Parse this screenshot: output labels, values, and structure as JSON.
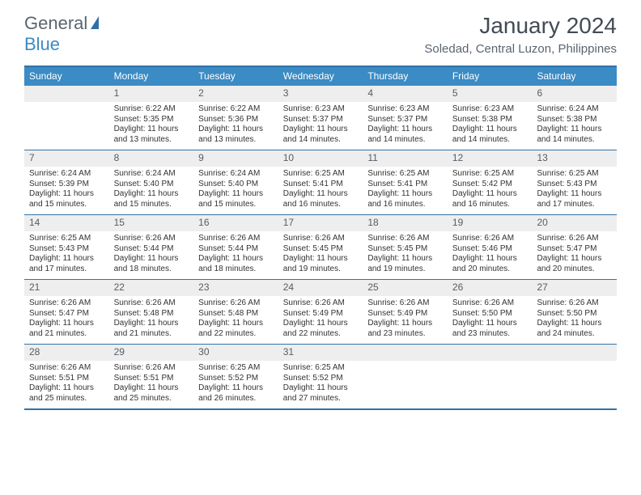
{
  "brand": {
    "part1": "General",
    "part2": "Blue"
  },
  "title": "January 2024",
  "location": "Soledad, Central Luzon, Philippines",
  "colors": {
    "header_bg": "#3b8bc4",
    "border": "#2f73a9",
    "daynum_bg": "#eeeeee",
    "text": "#333333",
    "muted": "#5a6570"
  },
  "days_of_week": [
    "Sunday",
    "Monday",
    "Tuesday",
    "Wednesday",
    "Thursday",
    "Friday",
    "Saturday"
  ],
  "weeks": [
    [
      {
        "n": "",
        "sr": "",
        "ss": "",
        "dl": ""
      },
      {
        "n": "1",
        "sr": "Sunrise: 6:22 AM",
        "ss": "Sunset: 5:35 PM",
        "dl": "Daylight: 11 hours and 13 minutes."
      },
      {
        "n": "2",
        "sr": "Sunrise: 6:22 AM",
        "ss": "Sunset: 5:36 PM",
        "dl": "Daylight: 11 hours and 13 minutes."
      },
      {
        "n": "3",
        "sr": "Sunrise: 6:23 AM",
        "ss": "Sunset: 5:37 PM",
        "dl": "Daylight: 11 hours and 14 minutes."
      },
      {
        "n": "4",
        "sr": "Sunrise: 6:23 AM",
        "ss": "Sunset: 5:37 PM",
        "dl": "Daylight: 11 hours and 14 minutes."
      },
      {
        "n": "5",
        "sr": "Sunrise: 6:23 AM",
        "ss": "Sunset: 5:38 PM",
        "dl": "Daylight: 11 hours and 14 minutes."
      },
      {
        "n": "6",
        "sr": "Sunrise: 6:24 AM",
        "ss": "Sunset: 5:38 PM",
        "dl": "Daylight: 11 hours and 14 minutes."
      }
    ],
    [
      {
        "n": "7",
        "sr": "Sunrise: 6:24 AM",
        "ss": "Sunset: 5:39 PM",
        "dl": "Daylight: 11 hours and 15 minutes."
      },
      {
        "n": "8",
        "sr": "Sunrise: 6:24 AM",
        "ss": "Sunset: 5:40 PM",
        "dl": "Daylight: 11 hours and 15 minutes."
      },
      {
        "n": "9",
        "sr": "Sunrise: 6:24 AM",
        "ss": "Sunset: 5:40 PM",
        "dl": "Daylight: 11 hours and 15 minutes."
      },
      {
        "n": "10",
        "sr": "Sunrise: 6:25 AM",
        "ss": "Sunset: 5:41 PM",
        "dl": "Daylight: 11 hours and 16 minutes."
      },
      {
        "n": "11",
        "sr": "Sunrise: 6:25 AM",
        "ss": "Sunset: 5:41 PM",
        "dl": "Daylight: 11 hours and 16 minutes."
      },
      {
        "n": "12",
        "sr": "Sunrise: 6:25 AM",
        "ss": "Sunset: 5:42 PM",
        "dl": "Daylight: 11 hours and 16 minutes."
      },
      {
        "n": "13",
        "sr": "Sunrise: 6:25 AM",
        "ss": "Sunset: 5:43 PM",
        "dl": "Daylight: 11 hours and 17 minutes."
      }
    ],
    [
      {
        "n": "14",
        "sr": "Sunrise: 6:25 AM",
        "ss": "Sunset: 5:43 PM",
        "dl": "Daylight: 11 hours and 17 minutes."
      },
      {
        "n": "15",
        "sr": "Sunrise: 6:26 AM",
        "ss": "Sunset: 5:44 PM",
        "dl": "Daylight: 11 hours and 18 minutes."
      },
      {
        "n": "16",
        "sr": "Sunrise: 6:26 AM",
        "ss": "Sunset: 5:44 PM",
        "dl": "Daylight: 11 hours and 18 minutes."
      },
      {
        "n": "17",
        "sr": "Sunrise: 6:26 AM",
        "ss": "Sunset: 5:45 PM",
        "dl": "Daylight: 11 hours and 19 minutes."
      },
      {
        "n": "18",
        "sr": "Sunrise: 6:26 AM",
        "ss": "Sunset: 5:45 PM",
        "dl": "Daylight: 11 hours and 19 minutes."
      },
      {
        "n": "19",
        "sr": "Sunrise: 6:26 AM",
        "ss": "Sunset: 5:46 PM",
        "dl": "Daylight: 11 hours and 20 minutes."
      },
      {
        "n": "20",
        "sr": "Sunrise: 6:26 AM",
        "ss": "Sunset: 5:47 PM",
        "dl": "Daylight: 11 hours and 20 minutes."
      }
    ],
    [
      {
        "n": "21",
        "sr": "Sunrise: 6:26 AM",
        "ss": "Sunset: 5:47 PM",
        "dl": "Daylight: 11 hours and 21 minutes."
      },
      {
        "n": "22",
        "sr": "Sunrise: 6:26 AM",
        "ss": "Sunset: 5:48 PM",
        "dl": "Daylight: 11 hours and 21 minutes."
      },
      {
        "n": "23",
        "sr": "Sunrise: 6:26 AM",
        "ss": "Sunset: 5:48 PM",
        "dl": "Daylight: 11 hours and 22 minutes."
      },
      {
        "n": "24",
        "sr": "Sunrise: 6:26 AM",
        "ss": "Sunset: 5:49 PM",
        "dl": "Daylight: 11 hours and 22 minutes."
      },
      {
        "n": "25",
        "sr": "Sunrise: 6:26 AM",
        "ss": "Sunset: 5:49 PM",
        "dl": "Daylight: 11 hours and 23 minutes."
      },
      {
        "n": "26",
        "sr": "Sunrise: 6:26 AM",
        "ss": "Sunset: 5:50 PM",
        "dl": "Daylight: 11 hours and 23 minutes."
      },
      {
        "n": "27",
        "sr": "Sunrise: 6:26 AM",
        "ss": "Sunset: 5:50 PM",
        "dl": "Daylight: 11 hours and 24 minutes."
      }
    ],
    [
      {
        "n": "28",
        "sr": "Sunrise: 6:26 AM",
        "ss": "Sunset: 5:51 PM",
        "dl": "Daylight: 11 hours and 25 minutes."
      },
      {
        "n": "29",
        "sr": "Sunrise: 6:26 AM",
        "ss": "Sunset: 5:51 PM",
        "dl": "Daylight: 11 hours and 25 minutes."
      },
      {
        "n": "30",
        "sr": "Sunrise: 6:25 AM",
        "ss": "Sunset: 5:52 PM",
        "dl": "Daylight: 11 hours and 26 minutes."
      },
      {
        "n": "31",
        "sr": "Sunrise: 6:25 AM",
        "ss": "Sunset: 5:52 PM",
        "dl": "Daylight: 11 hours and 27 minutes."
      },
      {
        "n": "",
        "sr": "",
        "ss": "",
        "dl": ""
      },
      {
        "n": "",
        "sr": "",
        "ss": "",
        "dl": ""
      },
      {
        "n": "",
        "sr": "",
        "ss": "",
        "dl": ""
      }
    ]
  ]
}
